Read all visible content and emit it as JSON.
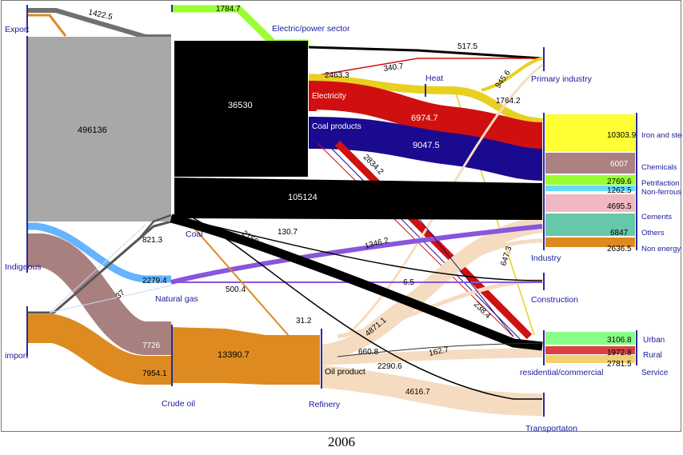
{
  "caption": "2006",
  "colors": {
    "coal_black": "#000000",
    "mix_gray": "#a8a8a8",
    "electric_green": "#99ff33",
    "heat_yellow": "#e8d020",
    "electricity_red": "#d01010",
    "coal_products_navy": "#1a0a90",
    "natural_gas_blue": "#66b3ff",
    "natural_gas_purple": "#8855dd",
    "crude_oil_brown": "#a88080",
    "crude_oil_orange": "#dd8a20",
    "oil_product_peach": "#f5dcc0",
    "node_axis": "#2a2aa0"
  },
  "nodes": {
    "export": "Export",
    "indigeous": "Indigeous",
    "import": "import",
    "electric_power_sector": "Electric/power sector",
    "electricity": "Electricity",
    "coal_products": "Coal products",
    "heat": "Heat",
    "coal": "Coal",
    "natural_gas": "Natural gas",
    "crude_oil": "Crude oil",
    "refinery": "Refinery",
    "oil_product": "Oil product",
    "primary_industry": "Primary industry",
    "industry": "Industry",
    "construction": "Construction",
    "residential_commercial": "residential/commercial",
    "transportation": "Transportaton",
    "iron_and_steel": "Iron and steel",
    "chemicals": "Chemicals",
    "petrifaction": "Petrifaction",
    "non_ferrous": "Non-ferrous",
    "cements": "Cements",
    "others": "Others",
    "non_energy": "Non energy",
    "urban": "Urban",
    "rural": "Rural",
    "service": "Service"
  },
  "values": {
    "export_1422": "1422.5",
    "supply_496136": "496136",
    "electric_1784": "1784.7",
    "coal_36530": "36530",
    "coal_105124": "105124",
    "primary_517": "517.5",
    "elec_heat_340": "340.7",
    "heat_2463": "2463.3",
    "heat_945": "945.6",
    "heat_1764": "1764.2",
    "elec_6974": "6974.7",
    "coal_prod_9047": "9047.5",
    "coal_821": "821.3",
    "gas_2279": "2279.4",
    "gas_500": "500.4",
    "coal_2150": "2150.2",
    "coal_130": "130.7",
    "gas_1346": "1346.2",
    "val_6_5": "6.5",
    "val_647": "647.3",
    "val_238": "238.4",
    "val_37": "37",
    "val_31": "31.2",
    "crude_7726": "7726",
    "crude_7954": "7954.1",
    "refinery_13390": "13390.7",
    "oil_4871": "4871.1",
    "oil_660": "660.8",
    "oil_162": "162.7",
    "oil_2290": "2290.6",
    "oil_4616": "4616.7",
    "val_2834": "2834.2",
    "iron_10303": "10303.9",
    "chem_6007": "6007",
    "petri_2769": "2769.6",
    "nonfer_1262": "1262.5",
    "cem_4695": "4695.5",
    "others_6847": "6847",
    "nonen_2636": "2636.5",
    "urban_3106": "3106.8",
    "rural_1972": "1972.8",
    "service_2781": "2781.5"
  }
}
